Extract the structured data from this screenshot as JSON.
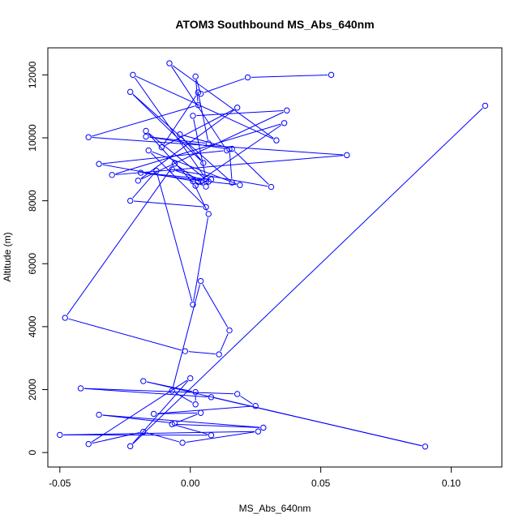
{
  "chart_data": {
    "type": "line",
    "title": "ATOM3 Southbound MS_Abs_640nm",
    "xlabel": "MS_Abs_640nm",
    "ylabel": "Altitude (m)",
    "xlim": [
      -0.0546,
      0.1194
    ],
    "ylim": [
      -460,
      12860
    ],
    "xticks": [
      -0.05,
      0.0,
      0.05,
      0.1
    ],
    "xtick_labels": [
      "-0.05",
      "0.00",
      "0.05",
      "0.10"
    ],
    "yticks": [
      0,
      2000,
      4000,
      6000,
      8000,
      10000,
      12000
    ],
    "ytick_labels": [
      "0",
      "2000",
      "4000",
      "6000",
      "8000",
      "10000",
      "12000"
    ],
    "grid": false,
    "color": "#0000ff",
    "marker": "open-circle",
    "series": [
      {
        "x": [
          0.054,
          0.022,
          0.004,
          0.002,
          0.003,
          -0.039,
          0.06,
          -0.03,
          0.036,
          0.003,
          -0.035,
          0.014,
          -0.008,
          0.033,
          -0.022,
          0.006,
          0.001,
          0.037,
          -0.02,
          0.018,
          -0.011,
          0.003,
          0.007,
          -0.017,
          0.015,
          0.016,
          -0.023,
          0.005,
          -0.004,
          0.016,
          0.031,
          -0.007,
          0.006,
          -0.019,
          0.008,
          0.002,
          -0.017,
          0.007,
          0.019,
          -0.016,
          0.006,
          -0.023,
          -0.013,
          0.001,
          0.007,
          0.001,
          0.006,
          -0.006,
          -0.048,
          -0.002,
          0.011,
          0.015,
          0.004,
          -0.007,
          0.002,
          0.002,
          -0.018,
          0.09,
          0.008,
          -0.042,
          0.018,
          0.025,
          -0.014,
          0.004,
          -0.006,
          -0.035,
          0.028,
          -0.007,
          0.008,
          -0.05,
          0.026,
          -0.003,
          -0.018,
          -0.039,
          0.0,
          -0.023,
          0.113
        ],
        "y": [
          12000,
          11920,
          11400,
          11950,
          11040,
          10020,
          9450,
          8820,
          10470,
          8600,
          9170,
          9600,
          12370,
          9920,
          12000,
          8700,
          10700,
          10870,
          8640,
          10960,
          9700,
          11440,
          9820,
          10040,
          9640,
          8580,
          11460,
          9200,
          10110,
          9650,
          8440,
          9000,
          8620,
          8890,
          8680,
          8480,
          10220,
          8610,
          8500,
          9600,
          7800,
          8000,
          8950,
          4700,
          7580,
          8620,
          8450,
          9180,
          4280,
          3220,
          3120,
          3880,
          5450,
          1960,
          1530,
          1920,
          2270,
          190,
          1760,
          2040,
          1860,
          1480,
          1230,
          1260,
          930,
          1200,
          790,
          900,
          550,
          560,
          670,
          310,
          660,
          270,
          2360,
          200,
          11020
        ]
      }
    ]
  }
}
